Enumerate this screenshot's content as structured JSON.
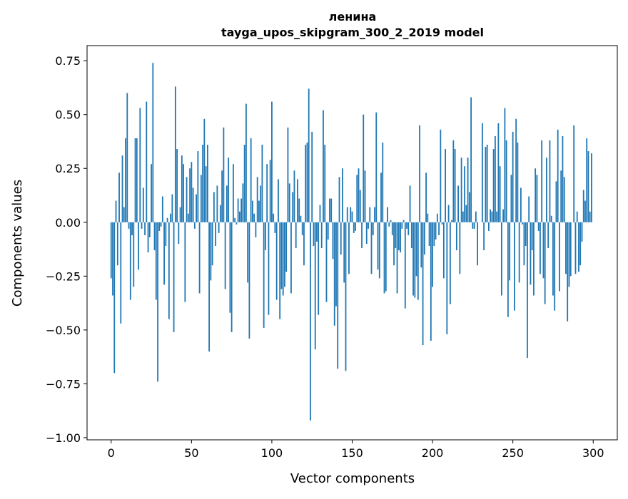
{
  "chart_data": {
    "type": "bar",
    "title": "ленина",
    "subtitle": "tayga_upos_skipgram_300_2_2019 model",
    "xlabel": "Vector components",
    "ylabel": "Components values",
    "xlim": [
      -15,
      315
    ],
    "ylim": [
      -1.01,
      0.82
    ],
    "xticks": [
      "0",
      "50",
      "100",
      "150",
      "200",
      "250",
      "300"
    ],
    "yticks": [
      "0.75",
      "0.50",
      "0.25",
      "0.00",
      "−0.25",
      "−0.50",
      "−0.75",
      "−1.00"
    ],
    "bar_color": "#1f77b4",
    "grid": false,
    "values": [
      -0.26,
      -0.34,
      -0.7,
      0.1,
      -0.2,
      0.23,
      -0.47,
      0.31,
      0.07,
      0.39,
      0.6,
      -0.03,
      -0.36,
      -0.06,
      -0.3,
      0.39,
      0.39,
      -0.22,
      0.53,
      -0.03,
      0.16,
      -0.06,
      0.56,
      -0.14,
      -0.07,
      0.27,
      0.74,
      -0.13,
      -0.36,
      -0.74,
      -0.04,
      -0.02,
      0.12,
      -0.29,
      -0.11,
      0.02,
      -0.45,
      0.04,
      0.13,
      -0.51,
      0.63,
      0.34,
      -0.1,
      0.07,
      0.31,
      0.27,
      -0.37,
      0.21,
      0.04,
      0.25,
      0.28,
      0.16,
      -0.03,
      0.13,
      0.33,
      -0.33,
      0.22,
      0.36,
      0.48,
      0.26,
      0.36,
      -0.6,
      -0.27,
      -0.2,
      0.14,
      -0.11,
      0.17,
      -0.05,
      0.08,
      0.24,
      0.44,
      -0.31,
      0.17,
      0.3,
      -0.42,
      -0.51,
      0.27,
      0.02,
      -0.01,
      0.11,
      0.05,
      0.11,
      0.18,
      0.36,
      0.55,
      -0.28,
      -0.54,
      0.39,
      0.1,
      0.04,
      -0.07,
      0.21,
      0.1,
      0.17,
      0.36,
      -0.49,
      -0.13,
      0.27,
      -0.43,
      0.29,
      0.56,
      0.04,
      -0.05,
      -0.36,
      0.2,
      -0.45,
      -0.31,
      -0.34,
      -0.3,
      -0.23,
      0.44,
      0.18,
      -0.33,
      0.14,
      0.24,
      -0.12,
      0.2,
      0.11,
      0.03,
      -0.06,
      -0.2,
      0.36,
      0.37,
      0.62,
      -0.92,
      0.42,
      -0.11,
      -0.59,
      -0.09,
      -0.43,
      0.08,
      -0.12,
      0.52,
      0.36,
      -0.37,
      -0.08,
      0.11,
      0.11,
      -0.17,
      -0.48,
      -0.39,
      -0.68,
      0.21,
      -0.15,
      0.25,
      -0.28,
      -0.69,
      0.07,
      -0.24,
      0.07,
      0.05,
      -0.05,
      -0.04,
      0.22,
      0.25,
      0.15,
      -0.12,
      0.5,
      0.24,
      -0.1,
      -0.03,
      0.07,
      -0.24,
      -0.06,
      0.07,
      0.51,
      -0.22,
      -0.26,
      0.23,
      0.37,
      -0.33,
      -0.32,
      0.07,
      -0.02,
      0.01,
      -0.06,
      -0.2,
      -0.12,
      -0.33,
      -0.13,
      -0.14,
      -0.03,
      0.01,
      -0.4,
      -0.03,
      -0.06,
      0.17,
      -0.12,
      -0.34,
      -0.35,
      -0.25,
      -0.36,
      0.45,
      -0.21,
      -0.57,
      -0.15,
      0.23,
      0.04,
      -0.11,
      -0.55,
      -0.3,
      -0.11,
      -0.08,
      0.04,
      -0.06,
      0.43,
      -0.01,
      -0.26,
      0.34,
      -0.52,
      0.08,
      -0.38,
      0.01,
      0.38,
      0.34,
      -0.13,
      0.17,
      -0.24,
      0.3,
      0.05,
      0.26,
      0.08,
      0.3,
      0.14,
      0.58,
      -0.03,
      -0.03,
      0.05,
      -0.2,
      0.0,
      0.0,
      0.46,
      -0.13,
      0.35,
      0.36,
      -0.04,
      0.06,
      0.05,
      0.34,
      0.4,
      0.05,
      0.46,
      0.26,
      -0.34,
      0.06,
      0.53,
      0.38,
      -0.44,
      -0.27,
      0.22,
      0.42,
      -0.41,
      0.48,
      0.37,
      -0.28,
      0.16,
      -0.01,
      -0.2,
      -0.11,
      -0.63,
      0.12,
      -0.29,
      -0.13,
      -0.34,
      0.25,
      0.22,
      -0.04,
      -0.24,
      0.38,
      -0.26,
      -0.38,
      0.3,
      -0.12,
      0.38,
      0.03,
      -0.34,
      -0.41,
      0.19,
      0.43,
      -0.32,
      0.24,
      0.4,
      0.21,
      -0.24,
      -0.46,
      -0.3,
      -0.25,
      0.0,
      0.45,
      -0.24,
      0.05,
      -0.23,
      -0.2,
      -0.09,
      0.15,
      0.1,
      0.39,
      0.33,
      0.05,
      0.32
    ]
  }
}
